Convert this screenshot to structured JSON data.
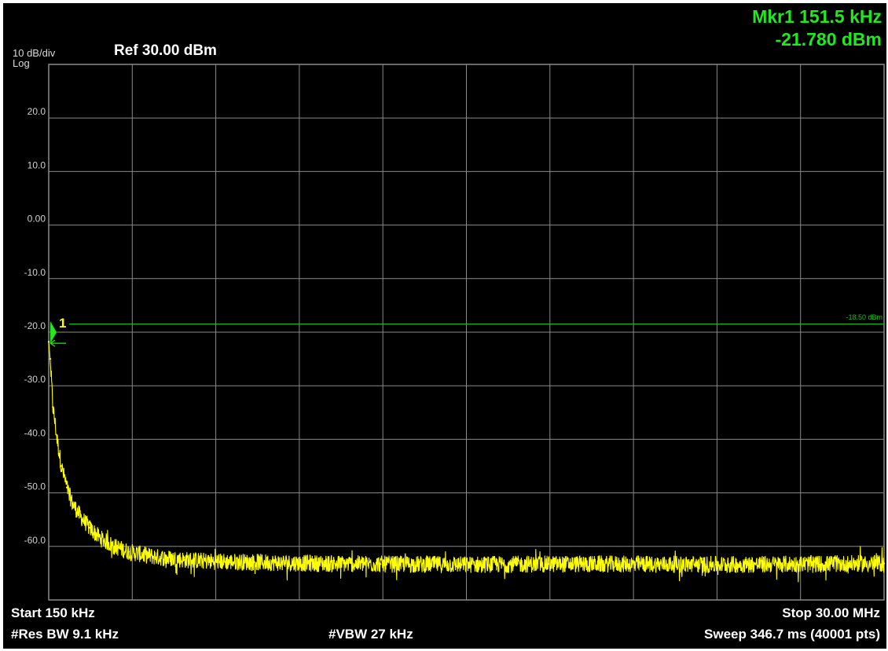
{
  "header": {
    "scale_per_div": "10 dB/div",
    "scale_type": "Log",
    "ref_level": "Ref 30.00 dBm",
    "marker_freq": "Mkr1 151.5 kHz",
    "marker_amp": "-21.780 dBm"
  },
  "footer": {
    "start": "Start 150 kHz",
    "stop": "Stop 30.00 MHz",
    "res_bw": "#Res BW 9.1 kHz",
    "vbw": "#VBW 27 kHz",
    "sweep": "Sweep  346.7 ms (40001 pts)"
  },
  "colors": {
    "background": "#000000",
    "grid": "#8a8a8a",
    "trace": "#ffff00",
    "display_line": "#1fbf1f",
    "marker": "#22e81e",
    "marker_label": "#ffff00",
    "tick_label": "#d0d0d0"
  },
  "chart_data": {
    "type": "line",
    "x_unit": "MHz",
    "xlim": [
      0.15,
      30.0
    ],
    "ylim": [
      -70,
      30
    ],
    "y_tick_labels": [
      "20.0",
      "10.0",
      "0.00",
      "-10.0",
      "-20.0",
      "-30.0",
      "-40.0",
      "-50.0",
      "-60.0"
    ],
    "grid": true,
    "series": [
      {
        "x": [
          0.15,
          0.2,
          0.3,
          0.45,
          0.6,
          0.8,
          1.0,
          1.3,
          1.6,
          2.0,
          2.5,
          3.0,
          4.0,
          5.0,
          6.0,
          8.0,
          10.0,
          12.0,
          15.0,
          18.0,
          21.0,
          24.0,
          27.0,
          30.0
        ],
        "y": [
          -21.8,
          -25,
          -34,
          -40,
          -45,
          -49,
          -52,
          -54.5,
          -56.5,
          -58.5,
          -60,
          -61,
          -62,
          -62.5,
          -62.8,
          -63.0,
          -63.2,
          -63.3,
          -63.4,
          -63.3,
          -63.3,
          -63.4,
          -63.3,
          -63.2
        ]
      }
    ],
    "display_line": {
      "value": -18.5,
      "label": "-18.50 dBm"
    },
    "marker": {
      "label": "1",
      "x": 0.1515,
      "y": -21.78
    }
  }
}
